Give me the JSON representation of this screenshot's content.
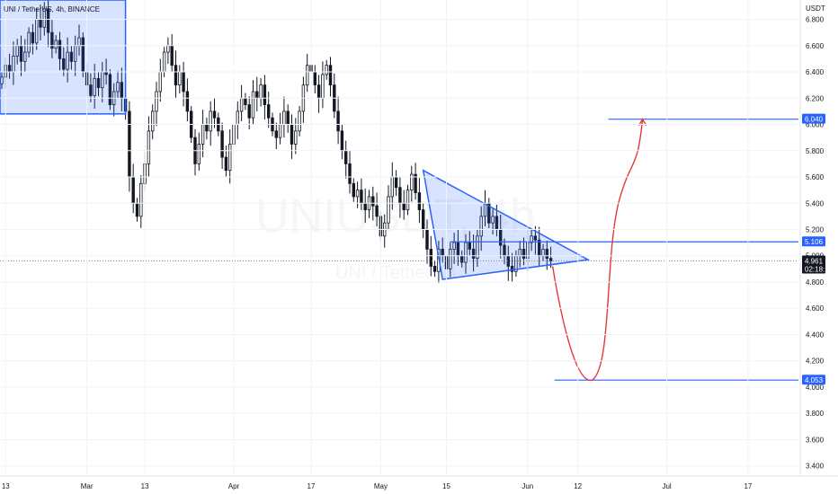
{
  "chart_data": {
    "type": "candlestick",
    "symbol_title": "UNI / TetherUS, 4h, BINANCE",
    "watermark_main": "UNIUSDT, 4h",
    "watermark_sub": "UNI / TetherUS",
    "unit": "USDT",
    "y_ticks": [
      "6.800",
      "6.600",
      "6.400",
      "6.200",
      "6.000",
      "5.800",
      "5.600",
      "5.400",
      "5.200",
      "5.000",
      "4.800",
      "4.600",
      "4.400",
      "4.200",
      "4.000",
      "3.800",
      "3.600",
      "3.400"
    ],
    "x_ticks": [
      "13",
      "Mar",
      "13",
      "Apr",
      "17",
      "May",
      "15",
      "Jun",
      "12",
      "Jul",
      "17"
    ],
    "ylim": [
      3.35,
      6.92
    ],
    "price_labels": [
      {
        "value": 6.04,
        "text": "6.040",
        "color": "#2962ff"
      },
      {
        "value": 5.106,
        "text": "5.106",
        "color": "#2962ff"
      },
      {
        "value": 4.053,
        "text": "4.053",
        "color": "#2962ff"
      },
      {
        "value": 4.961,
        "text": "4.961",
        "color": "#131722"
      }
    ],
    "countdown": "02:18:11",
    "current_price": 4.961,
    "horizontal_levels": [
      6.04,
      5.106,
      4.053
    ],
    "closes": [
      6.36,
      6.45,
      6.4,
      6.52,
      6.6,
      6.48,
      6.55,
      6.7,
      6.62,
      6.8,
      6.74,
      6.88,
      6.7,
      6.58,
      6.64,
      6.5,
      6.42,
      6.55,
      6.48,
      6.6,
      6.66,
      6.4,
      6.3,
      6.22,
      6.35,
      6.28,
      6.4,
      6.38,
      6.15,
      6.25,
      6.32,
      6.2,
      6.1,
      5.6,
      5.4,
      5.3,
      5.55,
      5.7,
      5.95,
      6.1,
      6.25,
      6.4,
      6.55,
      6.6,
      6.45,
      6.3,
      6.4,
      6.25,
      6.1,
      5.9,
      5.7,
      5.85,
      6.0,
      5.95,
      6.1,
      6.05,
      5.95,
      5.75,
      5.65,
      5.85,
      6.0,
      6.1,
      6.2,
      6.15,
      6.05,
      6.25,
      6.2,
      6.3,
      6.15,
      6.05,
      5.95,
      5.9,
      6.0,
      6.1,
      6.0,
      5.85,
      5.95,
      6.1,
      6.3,
      6.45,
      6.4,
      6.3,
      6.2,
      6.38,
      6.45,
      6.3,
      6.1,
      5.95,
      5.8,
      5.7,
      5.55,
      5.45,
      5.5,
      5.4,
      5.35,
      5.45,
      5.38,
      5.3,
      5.15,
      5.25,
      5.45,
      5.6,
      5.52,
      5.4,
      5.35,
      5.5,
      5.62,
      5.48,
      5.35,
      5.2,
      5.05,
      4.92,
      4.88,
      5.05,
      5.0,
      4.9,
      5.05,
      5.1,
      5.0,
      4.95,
      5.1,
      5.05,
      4.98,
      5.15,
      5.3,
      5.4,
      5.25,
      5.3,
      5.2,
      5.08,
      5.0,
      4.92,
      4.88,
      5.0,
      5.05,
      4.98,
      5.1,
      5.15,
      5.12,
      5.0,
      5.05,
      4.98,
      4.96
    ],
    "triangle": {
      "apex_top": {
        "x_index": 109,
        "price": 5.65
      },
      "apex_bottom": {
        "x_index": 114,
        "price": 4.82
      },
      "apex_right_price": 4.97
    },
    "projection_path": [
      {
        "stage": "start",
        "price": 4.92
      },
      {
        "stage": "low",
        "price": 4.053
      },
      {
        "stage": "target",
        "price": 6.04
      }
    ],
    "colors": {
      "candle": "#131722",
      "drawing": "#2962ff",
      "drawing_fill": "rgba(41,98,255,0.18)",
      "projection": "#e53935",
      "grid": "#f0f3fa"
    }
  }
}
